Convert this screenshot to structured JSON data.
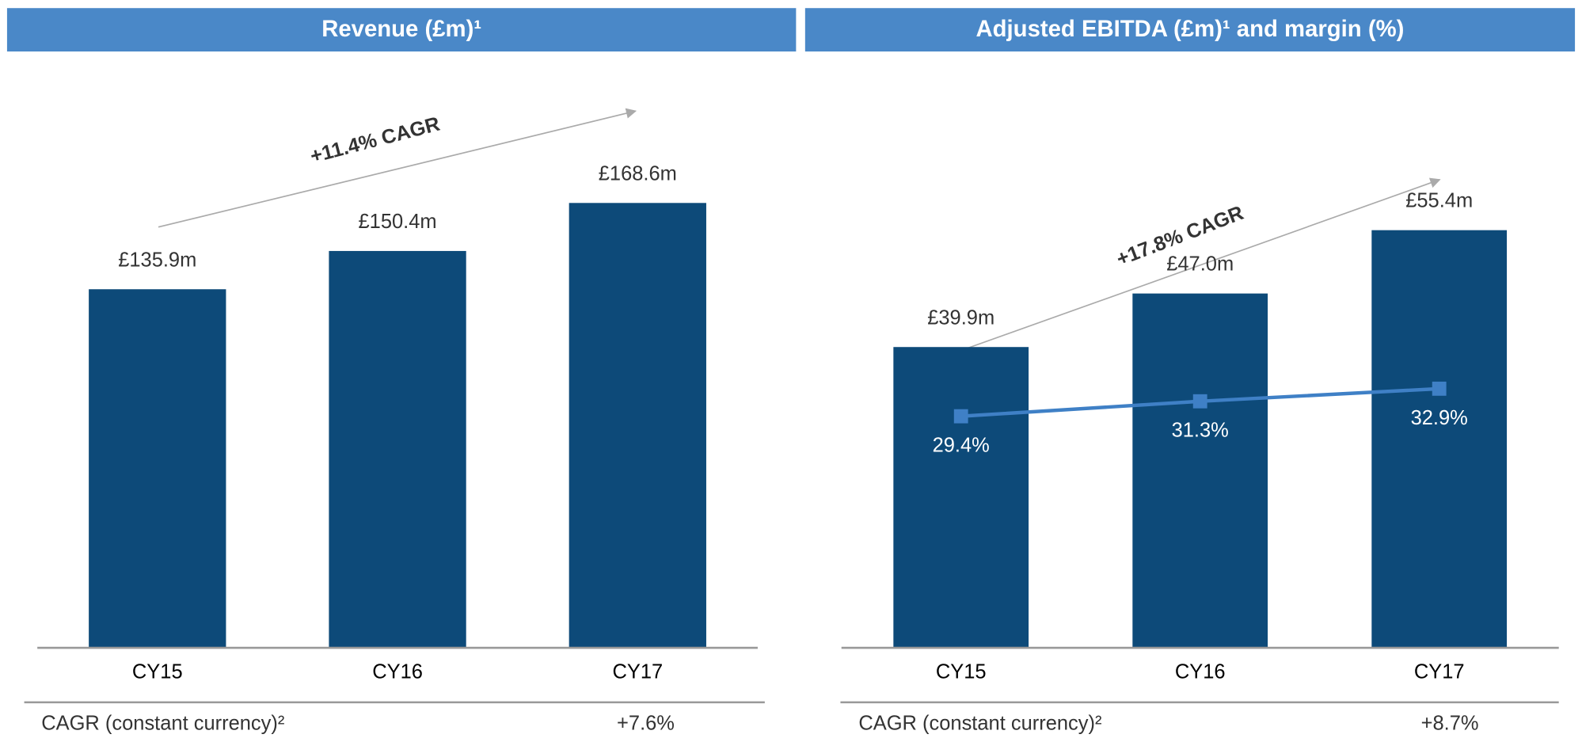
{
  "chart_data": [
    {
      "type": "bar",
      "title": "Revenue (£m)¹",
      "categories": [
        "CY15",
        "CY16",
        "CY17"
      ],
      "values": [
        135.9,
        150.4,
        168.6
      ],
      "value_labels": [
        "£135.9m",
        "£150.4m",
        "£168.6m"
      ],
      "color": "#0d4a79",
      "ylim": [
        0,
        200
      ],
      "annotation": "+11.4% CAGR",
      "footer": {
        "label": "CAGR (constant currency)²",
        "value": "+7.6%"
      }
    },
    {
      "type": "bar",
      "title": "Adjusted EBITDA (£m)¹ and margin (%)",
      "categories": [
        "CY15",
        "CY16",
        "CY17"
      ],
      "values": [
        39.9,
        47.0,
        55.4
      ],
      "value_labels": [
        "£39.9m",
        "£47.0m",
        "£55.4m"
      ],
      "color": "#0d4a79",
      "ylim": [
        0,
        70
      ],
      "line": {
        "values": [
          29.4,
          31.3,
          32.9
        ],
        "value_labels": [
          "29.4%",
          "31.3%",
          "32.9%"
        ],
        "color": "#3f80c6",
        "axis": "y2"
      },
      "y2lim": [
        0,
        67
      ],
      "annotation": "+17.8% CAGR",
      "footer": {
        "label": "CAGR (constant currency)²",
        "value": "+8.7%"
      }
    }
  ]
}
